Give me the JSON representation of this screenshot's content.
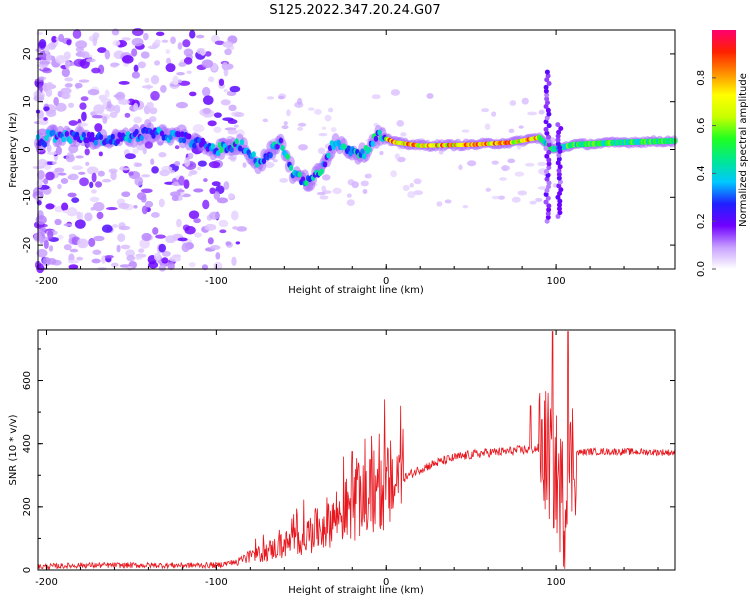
{
  "title": "S125.2022.347.20.24.G07",
  "chart_data": [
    {
      "type": "heatmap",
      "xlabel": "Height of straight line (km)",
      "ylabel": "Frequency (Hz)",
      "xlim": [
        -205,
        170
      ],
      "ylim": [
        -25,
        25
      ],
      "xticks": [
        -200,
        -100,
        0,
        100
      ],
      "yticks": [
        -20,
        -10,
        0,
        10,
        20
      ],
      "colorbar": {
        "label": "Normalized spectral amplitude",
        "range": [
          0.0,
          1.0
        ],
        "ticks": [
          0.0,
          0.2,
          0.4,
          0.6,
          0.8
        ],
        "tick_labels": [
          "0.0",
          "0.2",
          "0.4",
          "0.6",
          "0.8"
        ],
        "colors": [
          "#ffffff",
          "#c8a0ff",
          "#7000ff",
          "#2020ff",
          "#00c8ff",
          "#00e890",
          "#20ff20",
          "#c8ff00",
          "#ffff00",
          "#ff9000",
          "#ff2000",
          "#ff0070"
        ]
      },
      "ridge_frequency_hz": [
        {
          "x": -200,
          "y": 3
        },
        {
          "x": -180,
          "y": 2.5
        },
        {
          "x": -160,
          "y": 2
        },
        {
          "x": -140,
          "y": 3.5
        },
        {
          "x": -120,
          "y": 2.5
        },
        {
          "x": -100,
          "y": 0
        },
        {
          "x": -85,
          "y": 1
        },
        {
          "x": -75,
          "y": -3
        },
        {
          "x": -62,
          "y": 2
        },
        {
          "x": -55,
          "y": -5
        },
        {
          "x": -45,
          "y": -7
        },
        {
          "x": -38,
          "y": -4
        },
        {
          "x": -30,
          "y": 2
        },
        {
          "x": -22,
          "y": 0
        },
        {
          "x": -14,
          "y": -1
        },
        {
          "x": -5,
          "y": 3
        },
        {
          "x": 5,
          "y": 1.5
        },
        {
          "x": 20,
          "y": 0.8
        },
        {
          "x": 50,
          "y": 1
        },
        {
          "x": 75,
          "y": 1.5
        },
        {
          "x": 90,
          "y": 2.5
        },
        {
          "x": 98,
          "y": 0
        },
        {
          "x": 110,
          "y": 1
        },
        {
          "x": 140,
          "y": 1.5
        },
        {
          "x": 170,
          "y": 1.8
        }
      ],
      "spike_frequency_range_hz": [
        {
          "x": 95,
          "y_min": -15,
          "y_max": 17
        },
        {
          "x": 102,
          "y_min": -14,
          "y_max": 6
        }
      ]
    },
    {
      "type": "line",
      "xlabel": "Height of straight line (km)",
      "ylabel": "SNR (10 * v/v)",
      "xlim": [
        -205,
        170
      ],
      "ylim": [
        0,
        760
      ],
      "xticks": [
        -200,
        -100,
        0,
        100
      ],
      "yticks": [
        0,
        200,
        400,
        600
      ],
      "color": "#e8161d",
      "envelope": {
        "x": [
          -205,
          -180,
          -150,
          -120,
          -100,
          -90,
          -80,
          -70,
          -60,
          -50,
          -40,
          -30,
          -20,
          -10,
          0,
          10,
          20,
          30,
          40,
          50,
          60,
          70,
          80,
          90,
          95,
          100,
          105,
          110,
          120,
          140,
          170
        ],
        "y": [
          10,
          15,
          15,
          15,
          15,
          25,
          40,
          60,
          80,
          100,
          130,
          170,
          200,
          230,
          260,
          290,
          320,
          340,
          355,
          365,
          372,
          375,
          380,
          385,
          370,
          300,
          200,
          370,
          375,
          375,
          372
        ]
      },
      "peaks": [
        {
          "x": -20,
          "y": 375
        },
        {
          "x": 85,
          "y": 520
        },
        {
          "x": 98,
          "y": 755
        },
        {
          "x": 107,
          "y": 755
        }
      ]
    }
  ]
}
